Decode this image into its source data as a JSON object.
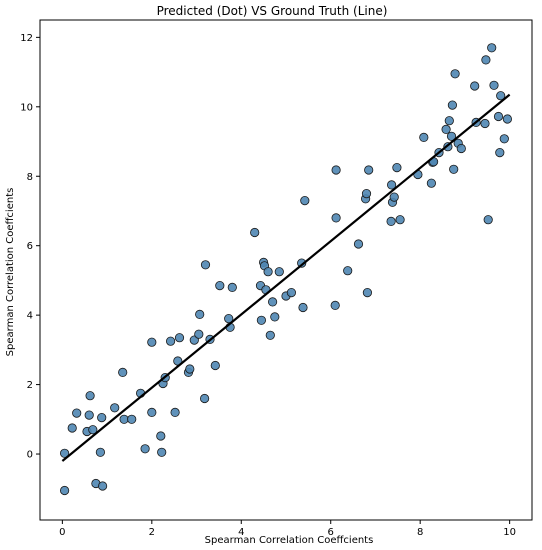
{
  "chart_data": {
    "type": "scatter",
    "title": "Predicted (Dot) VS Ground Truth (Line)",
    "xlabel": "Spearman Correlation Coeffcients",
    "ylabel": "Spearman Correlation Coeffcients",
    "xlim": [
      -0.5,
      10.5
    ],
    "ylim": [
      -1.9,
      12.5
    ],
    "xticks": [
      0,
      2,
      4,
      6,
      8,
      10
    ],
    "yticks": [
      0,
      2,
      4,
      6,
      8,
      10,
      12
    ],
    "grid": false,
    "colors": {
      "point_fill": "#4f86b3",
      "point_edge": "#1a1a1a",
      "line": "#000000"
    },
    "line": {
      "x": [
        0,
        10
      ],
      "y": [
        -0.2,
        10.35
      ]
    },
    "points": {
      "x": [
        0.05,
        0.05,
        0.22,
        0.32,
        0.55,
        0.6,
        0.62,
        0.68,
        0.75,
        0.85,
        0.88,
        0.9,
        1.17,
        1.35,
        1.38,
        1.55,
        1.75,
        1.85,
        2.0,
        2.0,
        2.2,
        2.22,
        2.25,
        2.3,
        2.42,
        2.52,
        2.58,
        2.62,
        2.82,
        2.85,
        2.95,
        3.05,
        3.07,
        3.18,
        3.2,
        3.3,
        3.42,
        3.52,
        3.72,
        3.75,
        3.8,
        4.3,
        4.43,
        4.45,
        4.5,
        4.52,
        4.55,
        4.6,
        4.65,
        4.7,
        4.75,
        4.85,
        5.0,
        5.12,
        5.35,
        5.38,
        5.42,
        6.1,
        6.12,
        6.12,
        6.38,
        6.62,
        6.78,
        6.8,
        6.82,
        6.85,
        7.35,
        7.36,
        7.38,
        7.42,
        7.48,
        7.55,
        7.95,
        8.08,
        8.25,
        8.28,
        8.3,
        8.42,
        8.58,
        8.62,
        8.65,
        8.7,
        8.72,
        8.75,
        8.78,
        8.85,
        8.92,
        9.22,
        9.25,
        9.45,
        9.47,
        9.52,
        9.6,
        9.65,
        9.75,
        9.78,
        9.8,
        9.88,
        9.95
      ],
      "y": [
        -1.05,
        0.02,
        0.75,
        1.18,
        0.65,
        1.12,
        1.68,
        0.7,
        -0.85,
        0.05,
        1.05,
        -0.92,
        1.33,
        2.35,
        1.0,
        1.0,
        1.75,
        0.15,
        1.2,
        3.22,
        0.52,
        0.05,
        2.03,
        2.2,
        3.25,
        1.2,
        2.68,
        3.35,
        2.35,
        2.45,
        3.28,
        3.45,
        4.02,
        1.6,
        5.45,
        3.3,
        2.55,
        4.85,
        3.9,
        3.65,
        4.8,
        6.38,
        4.85,
        3.85,
        5.52,
        5.42,
        4.73,
        5.25,
        3.42,
        4.38,
        3.95,
        5.25,
        4.55,
        4.65,
        5.5,
        4.22,
        7.3,
        4.28,
        6.8,
        8.18,
        5.28,
        6.05,
        7.35,
        7.5,
        4.65,
        8.18,
        6.7,
        7.75,
        7.25,
        7.4,
        8.25,
        6.75,
        8.05,
        9.12,
        7.8,
        8.4,
        8.42,
        8.68,
        9.35,
        8.85,
        9.6,
        9.15,
        10.05,
        8.2,
        10.95,
        8.95,
        8.8,
        10.6,
        9.55,
        9.52,
        11.35,
        6.75,
        11.7,
        10.62,
        9.72,
        8.68,
        10.32,
        9.08,
        9.65
      ]
    }
  }
}
